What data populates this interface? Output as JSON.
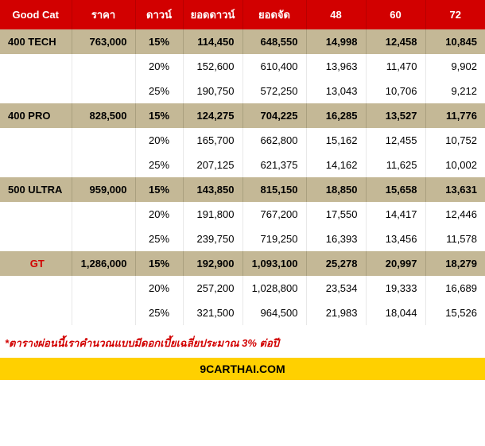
{
  "header": {
    "model": "Good Cat",
    "price": "ราคา",
    "down": "ดาวน์",
    "down_amount": "ยอดดาวน์",
    "finance": "ยอดจัด",
    "m48": "48",
    "m60": "60",
    "m72": "72"
  },
  "colors": {
    "header_bg": "#d20000",
    "header_text": "#ffffff",
    "model_bg": "#c4b896",
    "sub_bg": "#ffffff",
    "footer_bg": "#ffd000",
    "note_color": "#d20000",
    "gt_color": "#d20000"
  },
  "models": [
    {
      "name": "400 TECH",
      "name_class": "left",
      "price": "763,000",
      "rows": [
        {
          "down": "15%",
          "down_amt": "114,450",
          "finance": "648,550",
          "m48": "14,998",
          "m60": "12,458",
          "m72": "10,845"
        },
        {
          "down": "20%",
          "down_amt": "152,600",
          "finance": "610,400",
          "m48": "13,963",
          "m60": "11,470",
          "m72": "9,902"
        },
        {
          "down": "25%",
          "down_amt": "190,750",
          "finance": "572,250",
          "m48": "13,043",
          "m60": "10,706",
          "m72": "9,212"
        }
      ]
    },
    {
      "name": "400 PRO",
      "name_class": "left",
      "price": "828,500",
      "rows": [
        {
          "down": "15%",
          "down_amt": "124,275",
          "finance": "704,225",
          "m48": "16,285",
          "m60": "13,527",
          "m72": "11,776"
        },
        {
          "down": "20%",
          "down_amt": "165,700",
          "finance": "662,800",
          "m48": "15,162",
          "m60": "12,455",
          "m72": "10,752"
        },
        {
          "down": "25%",
          "down_amt": "207,125",
          "finance": "621,375",
          "m48": "14,162",
          "m60": "11,625",
          "m72": "10,002"
        }
      ]
    },
    {
      "name": "500 ULTRA",
      "name_class": "left",
      "price": "959,000",
      "rows": [
        {
          "down": "15%",
          "down_amt": "143,850",
          "finance": "815,150",
          "m48": "18,850",
          "m60": "15,658",
          "m72": "13,631"
        },
        {
          "down": "20%",
          "down_amt": "191,800",
          "finance": "767,200",
          "m48": "17,550",
          "m60": "14,417",
          "m72": "12,446"
        },
        {
          "down": "25%",
          "down_amt": "239,750",
          "finance": "719,250",
          "m48": "16,393",
          "m60": "13,456",
          "m72": "11,578"
        }
      ]
    },
    {
      "name": "GT",
      "name_class": "gt",
      "price": "1,286,000",
      "rows": [
        {
          "down": "15%",
          "down_amt": "192,900",
          "finance": "1,093,100",
          "m48": "25,278",
          "m60": "20,997",
          "m72": "18,279"
        },
        {
          "down": "20%",
          "down_amt": "257,200",
          "finance": "1,028,800",
          "m48": "23,534",
          "m60": "19,333",
          "m72": "16,689"
        },
        {
          "down": "25%",
          "down_amt": "321,500",
          "finance": "964,500",
          "m48": "21,983",
          "m60": "18,044",
          "m72": "15,526"
        }
      ]
    }
  ],
  "note": "*ตารางผ่อนนี้เราคำนวณแบบมีดอกเบี้ยเฉลี่ยประมาณ 3% ต่อปี",
  "footer": "9CARTHAI.COM"
}
